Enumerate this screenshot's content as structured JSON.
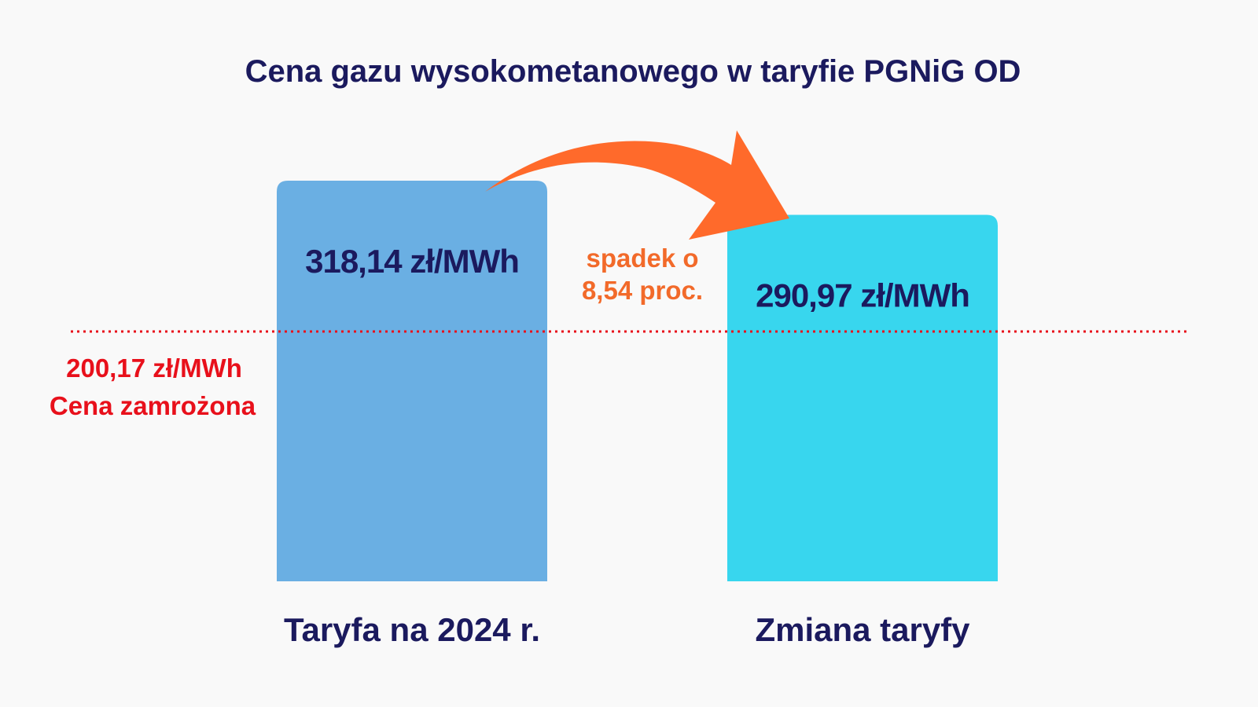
{
  "chart_data": {
    "type": "bar",
    "title": "Cena gazu wysokometanowego w taryfie PGNiG OD",
    "xlabel": "",
    "ylabel": "",
    "unit": "zł/MWh",
    "ylim": [
      0,
      340
    ],
    "grid": false,
    "legend": "none",
    "categories": [
      "Taryfa na 2024 r.",
      "Zmiana taryfy"
    ],
    "values": [
      318.14,
      290.97
    ],
    "value_labels": [
      "318,14 zł/MWh",
      "290,97 zł/MWh"
    ],
    "bar_colors": [
      "#6aafe3",
      "#38d6ee"
    ],
    "reference_line": {
      "value": 200.17,
      "label_value": "200,17 zł/MWh",
      "label_text": "Cena zamrożona",
      "color": "#e8101b",
      "style": "dotted"
    },
    "annotation": {
      "line1": "spadek o",
      "line2": "8,54 proc.",
      "color": "#f26a2a",
      "arrow_color": "#ff6a2b"
    }
  },
  "colors": {
    "background": "#f9f9f9",
    "text_primary": "#1b1a5e"
  }
}
